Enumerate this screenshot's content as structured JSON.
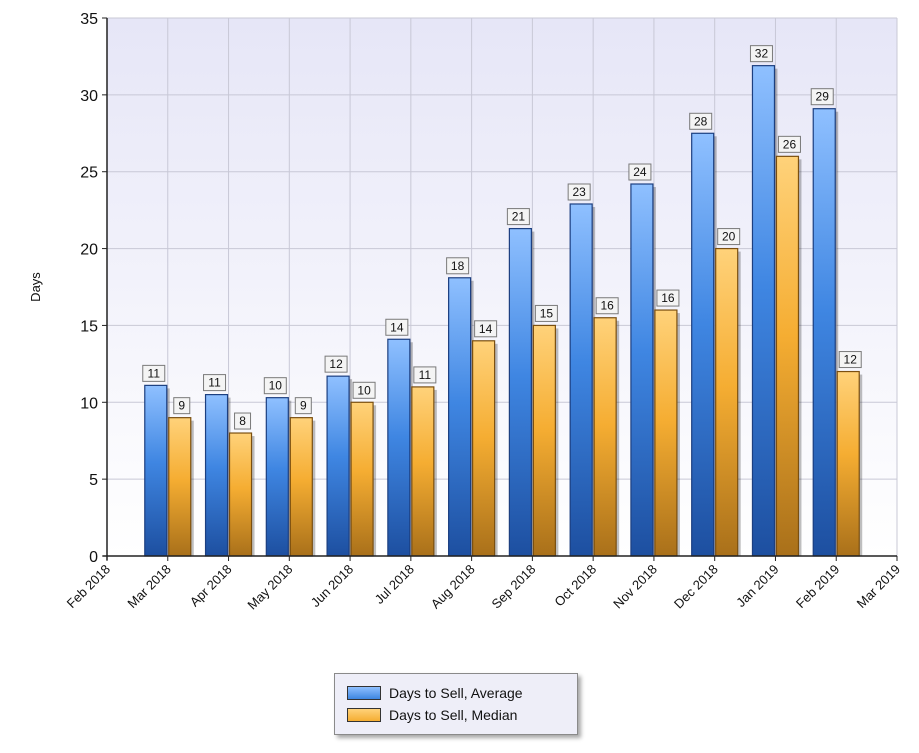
{
  "chart_data": {
    "type": "bar",
    "ylabel": "Days",
    "xlabel": "",
    "ylim": [
      0,
      35
    ],
    "yticks": [
      0,
      5,
      10,
      15,
      20,
      25,
      30,
      35
    ],
    "x_tick_labels": [
      "Feb 2018",
      "Mar 2018",
      "Apr 2018",
      "May 2018",
      "Jun 2018",
      "Jul 2018",
      "Aug 2018",
      "Sep 2018",
      "Oct 2018",
      "Nov 2018",
      "Dec 2018",
      "Jan 2019",
      "Feb 2019",
      "Mar 2019"
    ],
    "categories": [
      "Mar 2018",
      "Apr 2018",
      "May 2018",
      "Jun 2018",
      "Jul 2018",
      "Aug 2018",
      "Sep 2018",
      "Oct 2018",
      "Nov 2018",
      "Dec 2018",
      "Jan 2019",
      "Feb 2019"
    ],
    "series": [
      {
        "name": "Days to Sell, Average",
        "color": "#3d86e0",
        "values": [
          11.1,
          10.5,
          10.3,
          11.7,
          14.1,
          18.1,
          21.3,
          22.9,
          24.2,
          27.5,
          31.9,
          29.1
        ],
        "labels": [
          "11",
          "11",
          "10",
          "12",
          "14",
          "18",
          "21",
          "23",
          "24",
          "28",
          "32",
          "29"
        ]
      },
      {
        "name": "Days to Sell, Median",
        "color": "#f5ad32",
        "values": [
          9,
          8,
          9,
          10,
          11,
          14,
          15,
          15.5,
          16,
          20,
          26,
          12
        ],
        "labels": [
          "9",
          "8",
          "9",
          "10",
          "11",
          "14",
          "15",
          "16",
          "16",
          "20",
          "26",
          "12"
        ]
      }
    ],
    "grid": true,
    "legend_position": "bottom-center"
  }
}
